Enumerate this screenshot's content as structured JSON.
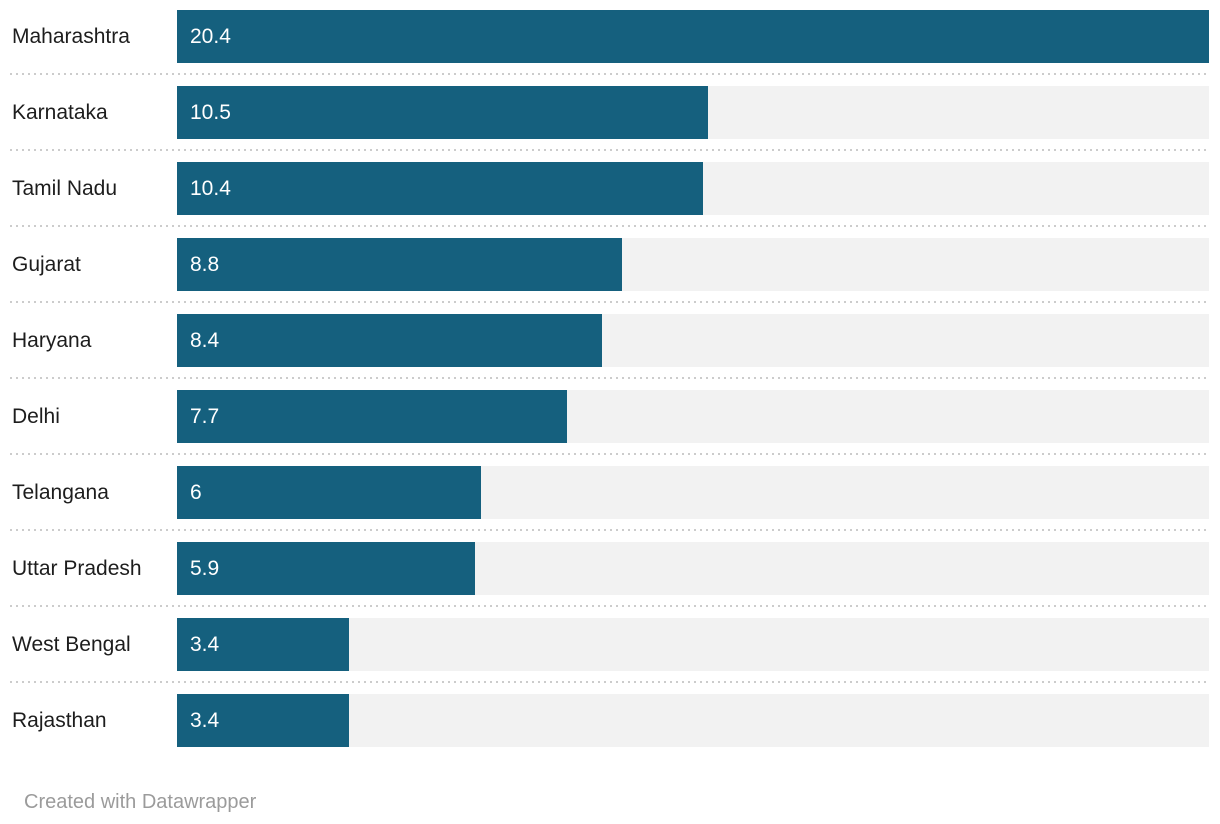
{
  "chart_data": {
    "type": "bar",
    "orientation": "horizontal",
    "categories": [
      "Maharashtra",
      "Karnataka",
      "Tamil Nadu",
      "Gujarat",
      "Haryana",
      "Delhi",
      "Telangana",
      "Uttar Pradesh",
      "West Bengal",
      "Rajasthan"
    ],
    "values": [
      20.4,
      10.5,
      10.4,
      8.8,
      8.4,
      7.7,
      6,
      5.9,
      3.4,
      3.4
    ],
    "rows": [
      {
        "label": "Maharashtra",
        "value": 20.4,
        "display": "20.4"
      },
      {
        "label": "Karnataka",
        "value": 10.5,
        "display": "10.5"
      },
      {
        "label": "Tamil Nadu",
        "value": 10.4,
        "display": "10.4"
      },
      {
        "label": "Gujarat",
        "value": 8.8,
        "display": "8.8"
      },
      {
        "label": "Haryana",
        "value": 8.4,
        "display": "8.4"
      },
      {
        "label": "Delhi",
        "value": 7.7,
        "display": "7.7"
      },
      {
        "label": "Telangana",
        "value": 6,
        "display": "6"
      },
      {
        "label": "Uttar Pradesh",
        "value": 5.9,
        "display": "5.9"
      },
      {
        "label": "West Bengal",
        "value": 3.4,
        "display": "3.4"
      },
      {
        "label": "Rajasthan",
        "value": 3.4,
        "display": "3.4"
      }
    ],
    "xlim": [
      0,
      20.4
    ],
    "xmax": 20.4,
    "title": "",
    "xlabel": "",
    "ylabel": "",
    "grid": false,
    "legend": false,
    "bar_color": "#15607e",
    "track_color": "#f2f2f2",
    "separator_color": "#cccccc",
    "label_color": "#1d1d1d",
    "value_label_color": "#ffffff"
  },
  "footer": {
    "text": "Created with Datawrapper",
    "color": "#9b9b9b"
  }
}
